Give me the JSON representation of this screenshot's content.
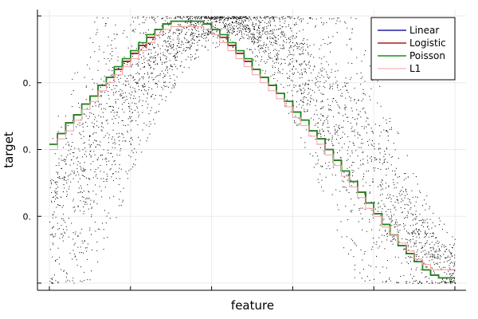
{
  "chart_data": {
    "type": "line",
    "xlabel": "feature",
    "ylabel": "target",
    "xlim": [
      0,
      1
    ],
    "ylim": [
      -0.04,
      1.04
    ],
    "x_ticks": [
      0,
      0.2,
      0.4,
      0.6,
      0.8,
      1.0
    ],
    "y_ticks": [
      {
        "value": 0.0,
        "label": ""
      },
      {
        "value": 0.25,
        "label": "0."
      },
      {
        "value": 0.5,
        "label": "0."
      },
      {
        "value": 0.75,
        "label": "0."
      },
      {
        "value": 1.0,
        "label": ""
      }
    ],
    "grid": true,
    "legend_position": "top-right",
    "scatter": {
      "n": 3500,
      "color": "#000000",
      "description_hidden": true
    },
    "series": [
      {
        "name": "Linear",
        "color": "#1f1fa8",
        "x": [
          0.0,
          0.02,
          0.04,
          0.06,
          0.08,
          0.1,
          0.12,
          0.14,
          0.16,
          0.18,
          0.2,
          0.22,
          0.24,
          0.26,
          0.28,
          0.3,
          0.32,
          0.34,
          0.36,
          0.38,
          0.4,
          0.42,
          0.44,
          0.46,
          0.48,
          0.5,
          0.52,
          0.54,
          0.56,
          0.58,
          0.6,
          0.62,
          0.64,
          0.66,
          0.68,
          0.7,
          0.72,
          0.74,
          0.76,
          0.78,
          0.8,
          0.82,
          0.84,
          0.86,
          0.88,
          0.9,
          0.92,
          0.94,
          0.96,
          0.98,
          1.0
        ],
        "y": [
          0.52,
          0.56,
          0.6,
          0.63,
          0.67,
          0.7,
          0.74,
          0.77,
          0.8,
          0.83,
          0.86,
          0.89,
          0.92,
          0.95,
          0.97,
          0.98,
          0.98,
          0.98,
          0.98,
          0.97,
          0.95,
          0.92,
          0.89,
          0.86,
          0.83,
          0.8,
          0.77,
          0.74,
          0.71,
          0.68,
          0.64,
          0.61,
          0.57,
          0.54,
          0.5,
          0.46,
          0.42,
          0.38,
          0.34,
          0.3,
          0.26,
          0.22,
          0.18,
          0.14,
          0.11,
          0.08,
          0.05,
          0.03,
          0.02,
          0.02,
          0.02
        ]
      },
      {
        "name": "Logistic",
        "color": "#b01c1c",
        "x": [
          0.0,
          0.02,
          0.04,
          0.06,
          0.08,
          0.1,
          0.12,
          0.14,
          0.16,
          0.18,
          0.2,
          0.22,
          0.24,
          0.26,
          0.28,
          0.3,
          0.32,
          0.34,
          0.36,
          0.38,
          0.4,
          0.42,
          0.44,
          0.46,
          0.48,
          0.5,
          0.52,
          0.54,
          0.56,
          0.58,
          0.6,
          0.62,
          0.64,
          0.66,
          0.68,
          0.7,
          0.72,
          0.74,
          0.76,
          0.78,
          0.8,
          0.82,
          0.84,
          0.86,
          0.88,
          0.9,
          0.92,
          0.94,
          0.96,
          0.98,
          1.0
        ],
        "y": [
          0.52,
          0.56,
          0.6,
          0.63,
          0.67,
          0.7,
          0.74,
          0.77,
          0.8,
          0.83,
          0.86,
          0.89,
          0.92,
          0.95,
          0.97,
          0.98,
          0.98,
          0.98,
          0.98,
          0.97,
          0.95,
          0.92,
          0.89,
          0.86,
          0.83,
          0.8,
          0.77,
          0.74,
          0.71,
          0.68,
          0.64,
          0.61,
          0.57,
          0.54,
          0.5,
          0.46,
          0.42,
          0.38,
          0.34,
          0.3,
          0.26,
          0.22,
          0.18,
          0.14,
          0.11,
          0.08,
          0.05,
          0.03,
          0.02,
          0.02,
          0.02
        ]
      },
      {
        "name": "Poisson",
        "color": "#1a8f1a",
        "x": [
          0.0,
          0.02,
          0.04,
          0.06,
          0.08,
          0.1,
          0.12,
          0.14,
          0.16,
          0.18,
          0.2,
          0.22,
          0.24,
          0.26,
          0.28,
          0.3,
          0.32,
          0.34,
          0.36,
          0.38,
          0.4,
          0.42,
          0.44,
          0.46,
          0.48,
          0.5,
          0.52,
          0.54,
          0.56,
          0.58,
          0.6,
          0.62,
          0.64,
          0.66,
          0.68,
          0.7,
          0.72,
          0.74,
          0.76,
          0.78,
          0.8,
          0.82,
          0.84,
          0.86,
          0.88,
          0.9,
          0.92,
          0.94,
          0.96,
          0.98,
          1.0
        ],
        "y": [
          0.52,
          0.56,
          0.6,
          0.63,
          0.67,
          0.7,
          0.74,
          0.77,
          0.81,
          0.84,
          0.87,
          0.9,
          0.93,
          0.95,
          0.97,
          0.98,
          0.98,
          0.98,
          0.98,
          0.97,
          0.95,
          0.93,
          0.9,
          0.87,
          0.84,
          0.8,
          0.77,
          0.74,
          0.71,
          0.68,
          0.64,
          0.61,
          0.57,
          0.54,
          0.5,
          0.46,
          0.42,
          0.38,
          0.34,
          0.3,
          0.26,
          0.22,
          0.18,
          0.14,
          0.11,
          0.08,
          0.05,
          0.03,
          0.02,
          0.02,
          0.02
        ]
      },
      {
        "name": "L1",
        "color": "#f4a0a0",
        "x": [
          0.0,
          0.02,
          0.04,
          0.06,
          0.08,
          0.1,
          0.12,
          0.14,
          0.16,
          0.18,
          0.2,
          0.22,
          0.24,
          0.26,
          0.28,
          0.3,
          0.32,
          0.34,
          0.36,
          0.38,
          0.4,
          0.42,
          0.44,
          0.46,
          0.48,
          0.5,
          0.52,
          0.54,
          0.56,
          0.58,
          0.6,
          0.62,
          0.64,
          0.66,
          0.68,
          0.7,
          0.72,
          0.74,
          0.76,
          0.78,
          0.8,
          0.82,
          0.84,
          0.86,
          0.88,
          0.9,
          0.92,
          0.94,
          0.96,
          0.98,
          1.0
        ],
        "y": [
          0.5,
          0.54,
          0.57,
          0.61,
          0.65,
          0.68,
          0.72,
          0.75,
          0.78,
          0.81,
          0.84,
          0.87,
          0.9,
          0.93,
          0.95,
          0.96,
          0.96,
          0.96,
          0.96,
          0.95,
          0.93,
          0.9,
          0.87,
          0.84,
          0.81,
          0.78,
          0.75,
          0.72,
          0.69,
          0.66,
          0.62,
          0.59,
          0.55,
          0.52,
          0.48,
          0.44,
          0.4,
          0.36,
          0.32,
          0.28,
          0.25,
          0.21,
          0.18,
          0.15,
          0.12,
          0.09,
          0.07,
          0.05,
          0.05,
          0.05,
          0.05
        ]
      }
    ]
  }
}
